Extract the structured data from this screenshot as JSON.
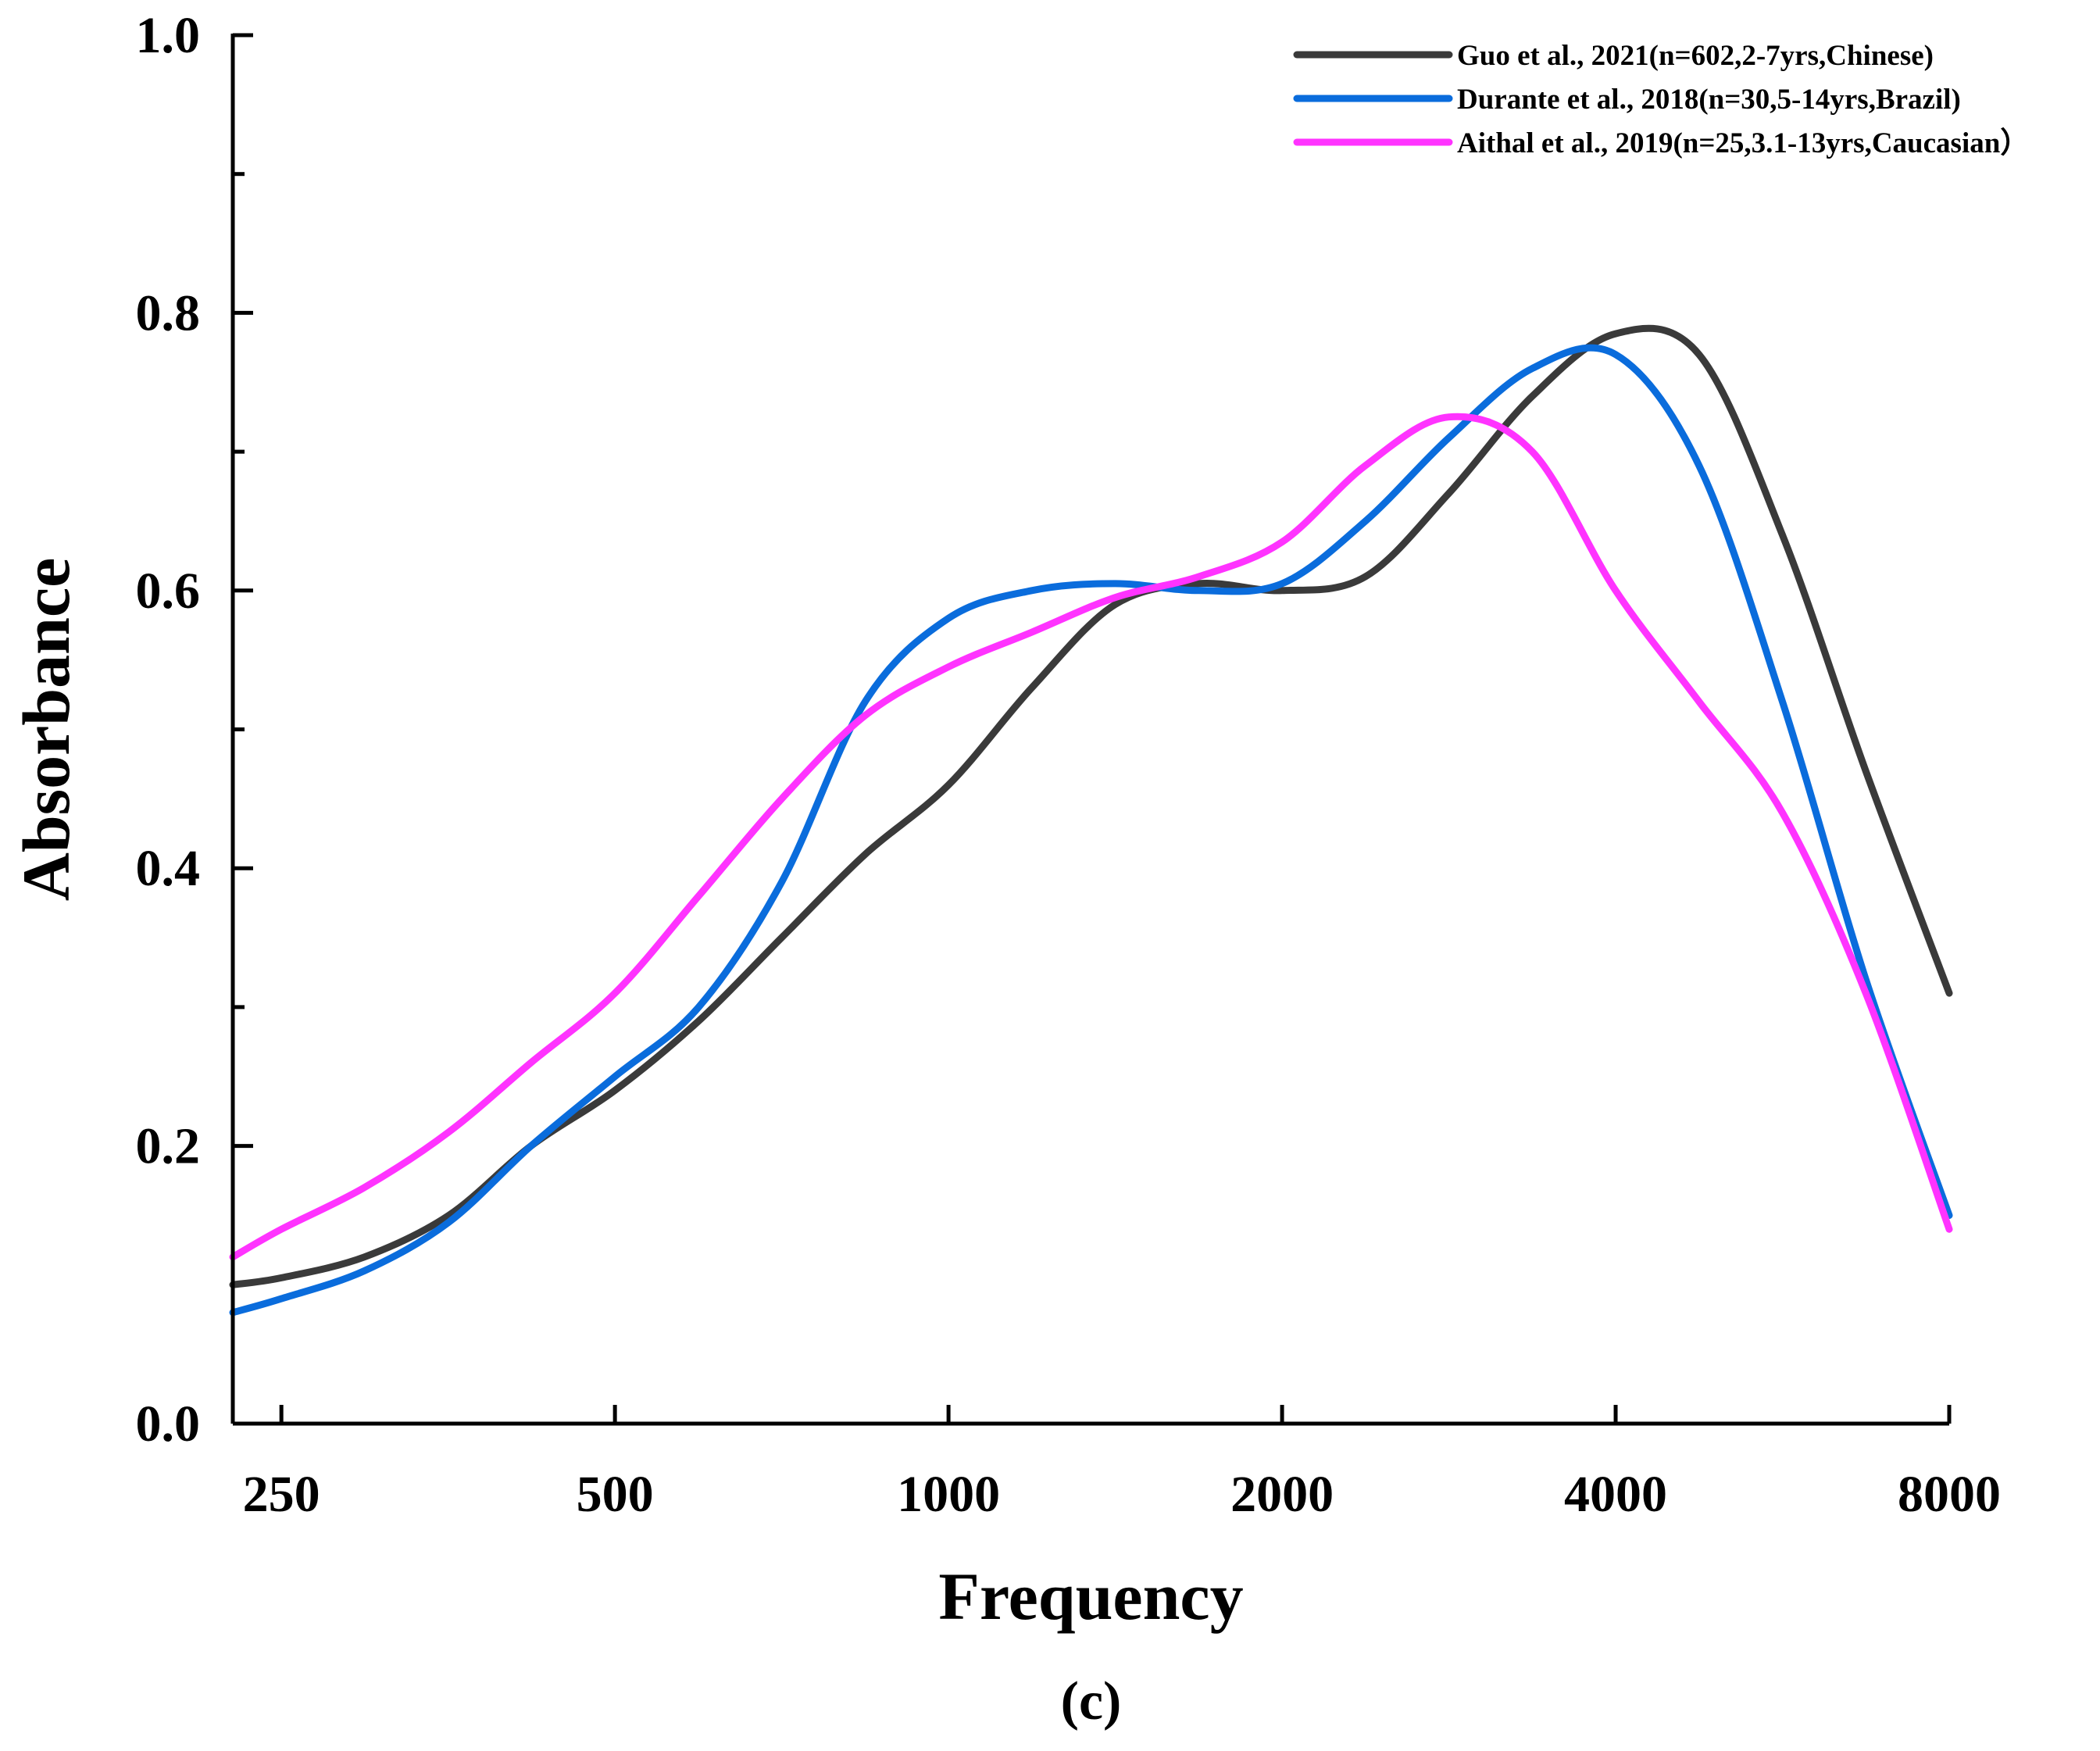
{
  "chart_data": {
    "type": "line",
    "title": "",
    "xlabel": "Frequency",
    "ylabel": "Absorbance",
    "caption": "(c)",
    "x_scale": "log2",
    "xlim": [
      226,
      8000
    ],
    "ylim": [
      0,
      1.0
    ],
    "x_ticks": [
      250,
      500,
      1000,
      2000,
      4000,
      8000
    ],
    "x_tick_labels": [
      "250",
      "500",
      "1000",
      "2000",
      "4000",
      "8000"
    ],
    "y_ticks": [
      0,
      0.2,
      0.4,
      0.6,
      0.8,
      1.0
    ],
    "y_tick_labels": [
      "0.0",
      "0.2",
      "0.4",
      "0.6",
      "0.8",
      "1.0"
    ],
    "grid": false,
    "legend_position": "top-right",
    "series": [
      {
        "name": "Guo et al., 2021(n=602,2-7yrs,Chinese)",
        "color": "#3a3a3a",
        "x": [
          226,
          250,
          297,
          354,
          420,
          500,
          595,
          707,
          841,
          1000,
          1189,
          1414,
          1682,
          2000,
          2378,
          2828,
          3364,
          4000,
          4757,
          5657,
          6727,
          8000
        ],
        "values": [
          0.1,
          0.105,
          0.12,
          0.15,
          0.2,
          0.24,
          0.29,
          0.35,
          0.41,
          0.46,
          0.53,
          0.59,
          0.605,
          0.6,
          0.61,
          0.67,
          0.74,
          0.785,
          0.77,
          0.64,
          0.47,
          0.31
        ]
      },
      {
        "name": "Durante et al., 2018(n=30,5-14yrs,Brazil)",
        "color": "#0a6cdc",
        "x": [
          226,
          250,
          297,
          354,
          420,
          500,
          595,
          707,
          841,
          1000,
          1189,
          1414,
          1682,
          2000,
          2378,
          2828,
          3364,
          4000,
          4757,
          5657,
          6727,
          8000
        ],
        "values": [
          0.08,
          0.09,
          0.11,
          0.145,
          0.2,
          0.25,
          0.3,
          0.39,
          0.52,
          0.58,
          0.6,
          0.605,
          0.6,
          0.605,
          0.65,
          0.71,
          0.76,
          0.77,
          0.69,
          0.52,
          0.32,
          0.15
        ]
      },
      {
        "name": "Aithal et al., 2019(n=25,3.1-13yrs,Caucasian）",
        "color": "#ff33ff",
        "x": [
          226,
          250,
          297,
          354,
          420,
          500,
          595,
          707,
          841,
          1000,
          1189,
          1414,
          1682,
          2000,
          2378,
          2828,
          3364,
          4000,
          4757,
          5657,
          6727,
          8000
        ],
        "values": [
          0.12,
          0.14,
          0.17,
          0.21,
          0.26,
          0.31,
          0.38,
          0.45,
          0.51,
          0.545,
          0.57,
          0.595,
          0.61,
          0.635,
          0.69,
          0.725,
          0.7,
          0.6,
          0.52,
          0.44,
          0.31,
          0.14
        ]
      }
    ]
  }
}
